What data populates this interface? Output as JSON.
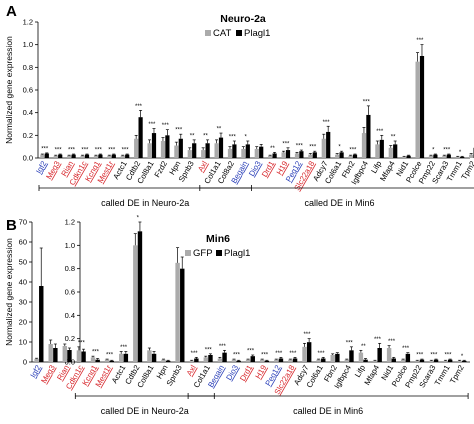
{
  "colors": {
    "gray": "#ababab",
    "black": "#000000",
    "red": "#d7262b",
    "blue": "#2a3fb8",
    "text": "#000000"
  },
  "chart_data": [
    {
      "panel_letter": "A",
      "type": "bar",
      "title": "Neuro-2a",
      "ylabel": "Normalized gene expression",
      "ylim": [
        0,
        1.2
      ],
      "yticks": [
        "0.0",
        "0.2",
        "0.4",
        "0.6",
        "0.8",
        "1.0",
        "1.2"
      ],
      "grid": false,
      "legend_position": "top-center",
      "categories": [
        "Igf2",
        "Meg3",
        "Rian",
        "Cdkn1c",
        "Kcnq1",
        "Mest1r",
        "Actc1",
        "Cdtb2",
        "Col8a1",
        "Fzd2",
        "Hpn",
        "Spnb3",
        "Axl",
        "Col1a1",
        "Col8a2",
        "Begain",
        "Dio3",
        "Drd1",
        "H19",
        "Peg12",
        "Slc22a18",
        "Adcy7",
        "Col6a1",
        "Fbn2",
        "Igfbpc4",
        "Lifp",
        "Mfap4",
        "Nid1",
        "Pcolce",
        "Pmp22",
        "Scara3",
        "Tmm1",
        "Tpm2"
      ],
      "label_colors": [
        "blue",
        "red",
        "red",
        "red",
        "red",
        "red",
        "black",
        "black",
        "black",
        "black",
        "black",
        "black",
        "red",
        "black",
        "black",
        "blue",
        "blue",
        "red",
        "red",
        "blue",
        "red",
        "black",
        "black",
        "black",
        "black",
        "black",
        "black",
        "black",
        "black",
        "black",
        "black",
        "black",
        "black"
      ],
      "significance": [
        "***",
        "***",
        "***",
        "***",
        "***",
        "***",
        "***",
        "***",
        "***",
        "***",
        "***",
        "**",
        "**",
        "**",
        "***",
        "*",
        "",
        "**",
        "***",
        "***",
        "***",
        "***",
        "*",
        "***",
        "***",
        "***",
        "**",
        "",
        "***",
        "*",
        "***",
        "*",
        ""
      ],
      "series": [
        {
          "name": "CAT",
          "values": [
            0.03,
            0.02,
            0.02,
            0.02,
            0.02,
            0.02,
            0.02,
            0.17,
            0.13,
            0.15,
            0.11,
            0.07,
            0.07,
            0.13,
            0.08,
            0.08,
            0.08,
            0.02,
            0.05,
            0.04,
            0.03,
            0.17,
            0.03,
            0.02,
            0.22,
            0.12,
            0.09,
            0.01,
            0.85,
            0.02,
            0.02,
            0.01,
            0.03
          ]
        },
        {
          "name": "Plagl1",
          "values": [
            0.04,
            0.03,
            0.03,
            0.03,
            0.03,
            0.03,
            0.03,
            0.36,
            0.22,
            0.2,
            0.17,
            0.13,
            0.13,
            0.18,
            0.12,
            0.12,
            0.1,
            0.04,
            0.07,
            0.06,
            0.05,
            0.23,
            0.05,
            0.03,
            0.38,
            0.16,
            0.12,
            0.02,
            0.9,
            0.03,
            0.03,
            0.01,
            0.09
          ]
        }
      ],
      "errors": [
        [
          0.005,
          0.005,
          0.005,
          0.005,
          0.005,
          0.005,
          0.005,
          0.03,
          0.03,
          0.03,
          0.03,
          0.02,
          0.02,
          0.03,
          0.02,
          0.02,
          0.02,
          0.005,
          0.01,
          0.01,
          0.01,
          0.04,
          0.01,
          0.005,
          0.05,
          0.03,
          0.02,
          0.005,
          0.08,
          0.005,
          0.005,
          0.005,
          0.01
        ],
        [
          0.005,
          0.005,
          0.005,
          0.005,
          0.005,
          0.005,
          0.005,
          0.06,
          0.04,
          0.05,
          0.04,
          0.03,
          0.03,
          0.04,
          0.03,
          0.03,
          0.02,
          0.01,
          0.02,
          0.01,
          0.01,
          0.05,
          0.01,
          0.005,
          0.08,
          0.04,
          0.03,
          0.005,
          0.1,
          0.005,
          0.005,
          0.005,
          0.02
        ]
      ],
      "groups": [
        {
          "label": "called DE in Neuro-2a",
          "from": "Igf2",
          "to": "Begain"
        },
        {
          "label": "called DE in Min6",
          "from": "Axl",
          "to": "Tpm2"
        }
      ]
    },
    {
      "panel_letter": "B",
      "type": "bar",
      "title": "Min6",
      "ylabel": "Normalized gene expression",
      "ylim_left": [
        0,
        70
      ],
      "yticks_left": [
        "0",
        "10",
        "20",
        "30",
        "40",
        "50",
        "60",
        "70"
      ],
      "ylim_right": [
        0,
        1.2
      ],
      "yticks_right": [
        "0.0",
        "0.2",
        "0.4",
        "0.6",
        "0.8",
        "1.0",
        "1.2"
      ],
      "grid": false,
      "legend_position": "top-center",
      "categories": [
        "Igf2",
        "Meg3",
        "Rian",
        "Cdkn1c",
        "Kcnq1",
        "Mest1r",
        "Actc1",
        "Cdtb2",
        "Col8a1",
        "Hpn",
        "Spnb3",
        "Axl",
        "Col1a1",
        "Begain",
        "Dio3",
        "Drd1",
        "H19",
        "Peg12",
        "Slc22a18",
        "Adcy7",
        "Col6a1",
        "Fbn2",
        "Igfbpc4",
        "Lifp",
        "Mfap4",
        "Nid1",
        "Pcolce",
        "Pmp22",
        "Scara3",
        "Tmm1",
        "Tpm2"
      ],
      "label_colors": [
        "blue",
        "red",
        "red",
        "red",
        "red",
        "red",
        "black",
        "black",
        "black",
        "black",
        "black",
        "red",
        "black",
        "blue",
        "blue",
        "red",
        "red",
        "blue",
        "red",
        "black",
        "black",
        "black",
        "black",
        "black",
        "black",
        "black",
        "black",
        "black",
        "black",
        "black",
        "black"
      ],
      "significance": [
        "",
        "",
        "",
        "***",
        "***",
        "***",
        "***",
        "*",
        "",
        "",
        "",
        "***",
        "***",
        "***",
        "***",
        "***",
        "***",
        "***",
        "***",
        "***",
        "***",
        "",
        "***",
        "**",
        "***",
        "***",
        "***",
        "***",
        "***",
        "***",
        "*"
      ],
      "series": [
        {
          "name": "GFP",
          "values": [
            1.6,
            9.0,
            8.0,
            0.1,
            0.04,
            0.02,
            0.07,
            1.0,
            0.1,
            0.02,
            0.85,
            0.01,
            0.04,
            0.03,
            0.02,
            0.02,
            0.02,
            0.02,
            0.02,
            0.13,
            0.02,
            0.06,
            0.02,
            0.08,
            0.01,
            0.12,
            0.02,
            0.01,
            0.01,
            0.01,
            0.01
          ]
        },
        {
          "name": "Plagl1",
          "values": [
            38.0,
            7.0,
            6.0,
            0.09,
            0.02,
            0.01,
            0.07,
            1.12,
            0.07,
            0.01,
            0.8,
            0.03,
            0.06,
            0.08,
            0.01,
            0.05,
            0.01,
            0.03,
            0.03,
            0.17,
            0.03,
            0.07,
            0.1,
            0.02,
            0.12,
            0.03,
            0.07,
            0.02,
            0.02,
            0.02,
            0.01
          ]
        }
      ],
      "errors": [
        [
          0.3,
          2.0,
          1.0,
          0.03,
          0.01,
          0.005,
          0.02,
          0.1,
          0.02,
          0.005,
          0.13,
          0.005,
          0.01,
          0.01,
          0.005,
          0.005,
          0.005,
          0.005,
          0.005,
          0.03,
          0.005,
          0.01,
          0.005,
          0.02,
          0.005,
          0.02,
          0.005,
          0.005,
          0.005,
          0.005,
          0.005
        ],
        [
          19.0,
          2.0,
          1.0,
          0.02,
          0.01,
          0.005,
          0.02,
          0.12,
          0.02,
          0.005,
          0.1,
          0.01,
          0.01,
          0.02,
          0.005,
          0.01,
          0.005,
          0.01,
          0.01,
          0.03,
          0.01,
          0.01,
          0.03,
          0.01,
          0.04,
          0.01,
          0.01,
          0.005,
          0.005,
          0.005,
          0.005
        ]
      ],
      "groups": [
        {
          "label": "called DE in Neuro-2a",
          "from": "Cdkn1c",
          "to": "Col1a1"
        },
        {
          "label": "called DE in Min6",
          "from": "Axl",
          "to": "Tpm2"
        }
      ]
    }
  ]
}
